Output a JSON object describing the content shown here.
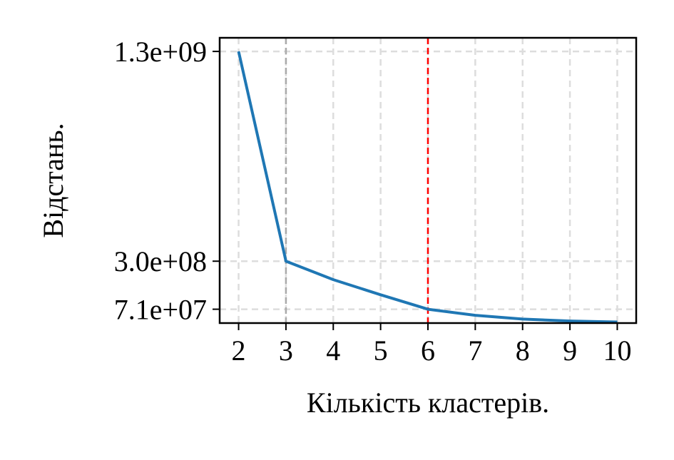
{
  "chart_data": {
    "type": "line",
    "xlabel": "Кількість кластерів.",
    "ylabel": "Відстань.",
    "x_ticks": [
      "2",
      "3",
      "4",
      "5",
      "6",
      "7",
      "8",
      "9",
      "10"
    ],
    "y_ticks": [
      {
        "value": 1300000000,
        "label": "1.3e+09"
      },
      {
        "value": 300000000,
        "label": "3.0e+08"
      },
      {
        "value": 71000000,
        "label": "7.1e+07"
      }
    ],
    "xlim": [
      1.6,
      10.4
    ],
    "ylim": [
      5000000,
      1365000000
    ],
    "grid": true,
    "series": [
      {
        "x": [
          2,
          3,
          4,
          5,
          6,
          7,
          8,
          9,
          10
        ],
        "y": [
          1300000000,
          300000000,
          212000000,
          140000000,
          71000000,
          42000000,
          24000000,
          15000000,
          10000000
        ],
        "color": "#1f77b4"
      }
    ],
    "vertical_lines": [
      {
        "x": 3,
        "color": "#aaaaaa",
        "style": "dashed"
      },
      {
        "x": 6,
        "color": "#ff0000",
        "style": "dashed"
      }
    ]
  }
}
